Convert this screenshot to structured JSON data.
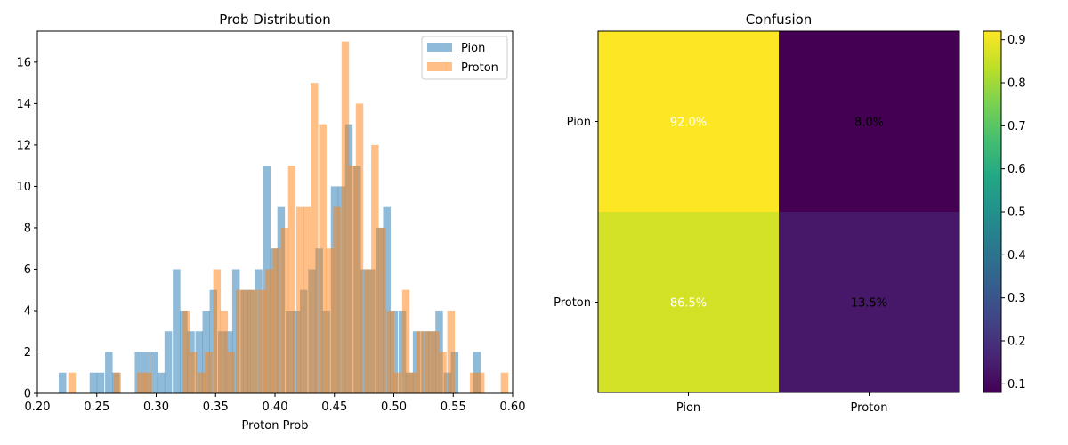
{
  "chart_data": [
    {
      "type": "histogram",
      "title": "Prob Distribution",
      "xlabel": "Proton Prob",
      "ylabel": "",
      "xlim": [
        0.2,
        0.6
      ],
      "ylim": [
        0,
        17.5
      ],
      "x_ticks": [
        0.2,
        0.25,
        0.3,
        0.35,
        0.4,
        0.45,
        0.5,
        0.55,
        0.6
      ],
      "y_ticks": [
        0,
        2,
        4,
        6,
        8,
        10,
        12,
        14,
        16
      ],
      "legend": {
        "position": "top-right"
      },
      "series": [
        {
          "name": "Pion",
          "color": "#1f77b4",
          "alpha": 0.5,
          "bin_width": 0.00635,
          "bins": [
            [
              0.218,
              1
            ],
            [
              0.244,
              1
            ],
            [
              0.25,
              1
            ],
            [
              0.257,
              2
            ],
            [
              0.263,
              1
            ],
            [
              0.282,
              2
            ],
            [
              0.288,
              2
            ],
            [
              0.295,
              2
            ],
            [
              0.301,
              1
            ],
            [
              0.307,
              3
            ],
            [
              0.314,
              6
            ],
            [
              0.32,
              4
            ],
            [
              0.326,
              3
            ],
            [
              0.333,
              3
            ],
            [
              0.339,
              4
            ],
            [
              0.345,
              5
            ],
            [
              0.352,
              3
            ],
            [
              0.358,
              3
            ],
            [
              0.364,
              6
            ],
            [
              0.371,
              5
            ],
            [
              0.377,
              5
            ],
            [
              0.383,
              6
            ],
            [
              0.39,
              11
            ],
            [
              0.396,
              7
            ],
            [
              0.402,
              9
            ],
            [
              0.409,
              4
            ],
            [
              0.415,
              4
            ],
            [
              0.421,
              5
            ],
            [
              0.428,
              6
            ],
            [
              0.434,
              7
            ],
            [
              0.44,
              4
            ],
            [
              0.447,
              10
            ],
            [
              0.453,
              10
            ],
            [
              0.459,
              13
            ],
            [
              0.466,
              11
            ],
            [
              0.472,
              6
            ],
            [
              0.478,
              6
            ],
            [
              0.485,
              8
            ],
            [
              0.491,
              9
            ],
            [
              0.497,
              4
            ],
            [
              0.504,
              4
            ],
            [
              0.51,
              1
            ],
            [
              0.516,
              3
            ],
            [
              0.523,
              3
            ],
            [
              0.529,
              3
            ],
            [
              0.535,
              4
            ],
            [
              0.542,
              1
            ],
            [
              0.548,
              2
            ],
            [
              0.567,
              2
            ]
          ]
        },
        {
          "name": "Proton",
          "color": "#ff7f0e",
          "alpha": 0.5,
          "bin_width": 0.00635,
          "bins": [
            [
              0.226,
              1
            ],
            [
              0.264,
              1
            ],
            [
              0.284,
              1
            ],
            [
              0.29,
              1
            ],
            [
              0.322,
              4
            ],
            [
              0.328,
              2
            ],
            [
              0.335,
              1
            ],
            [
              0.341,
              2
            ],
            [
              0.348,
              6
            ],
            [
              0.354,
              4
            ],
            [
              0.36,
              2
            ],
            [
              0.367,
              5
            ],
            [
              0.373,
              5
            ],
            [
              0.379,
              5
            ],
            [
              0.386,
              5
            ],
            [
              0.392,
              6
            ],
            [
              0.398,
              7
            ],
            [
              0.405,
              8
            ],
            [
              0.411,
              11
            ],
            [
              0.418,
              9
            ],
            [
              0.424,
              9
            ],
            [
              0.43,
              15
            ],
            [
              0.437,
              13
            ],
            [
              0.443,
              7
            ],
            [
              0.449,
              9
            ],
            [
              0.456,
              17
            ],
            [
              0.462,
              11
            ],
            [
              0.468,
              14
            ],
            [
              0.475,
              6
            ],
            [
              0.481,
              12
            ],
            [
              0.487,
              8
            ],
            [
              0.494,
              4
            ],
            [
              0.5,
              1
            ],
            [
              0.507,
              5
            ],
            [
              0.513,
              1
            ],
            [
              0.519,
              3
            ],
            [
              0.526,
              3
            ],
            [
              0.532,
              3
            ],
            [
              0.538,
              2
            ],
            [
              0.545,
              4
            ],
            [
              0.564,
              1
            ],
            [
              0.57,
              1
            ],
            [
              0.59,
              1
            ]
          ]
        }
      ]
    },
    {
      "type": "heatmap",
      "title": "Confusion",
      "rows": [
        "Pion",
        "Proton"
      ],
      "cols": [
        "Pion",
        "Proton"
      ],
      "values": [
        [
          0.92,
          0.08
        ],
        [
          0.865,
          0.135
        ]
      ],
      "labels": [
        [
          "92.0%",
          "8.0%"
        ],
        [
          "86.5%",
          "13.5%"
        ]
      ],
      "label_colors": [
        [
          "#ffffff",
          "#000000"
        ],
        [
          "#ffffff",
          "#000000"
        ]
      ],
      "colormap": "viridis",
      "colorbar": {
        "range": [
          0.08,
          0.92
        ],
        "ticks": [
          0.1,
          0.2,
          0.3,
          0.4,
          0.5,
          0.6,
          0.7,
          0.8,
          0.9
        ]
      }
    }
  ]
}
